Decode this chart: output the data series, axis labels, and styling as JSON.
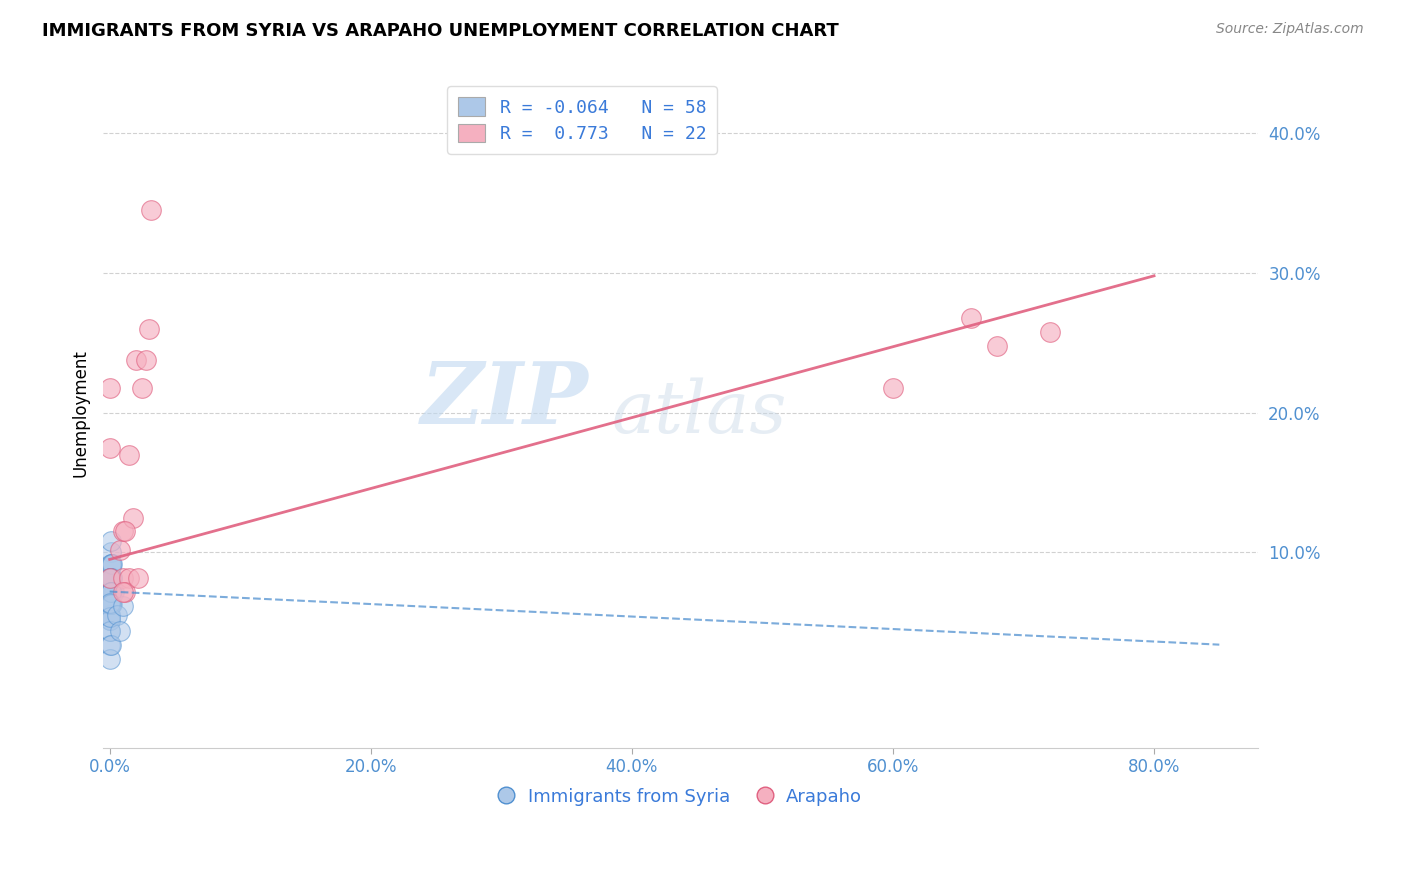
{
  "title": "IMMIGRANTS FROM SYRIA VS ARAPAHO UNEMPLOYMENT CORRELATION CHART",
  "source": "Source: ZipAtlas.com",
  "ylabel": "Unemployment",
  "xlabel_blue": "Immigrants from Syria",
  "xlabel_pink": "Arapaho",
  "x_tick_labels": [
    "0.0%",
    "20.0%",
    "40.0%",
    "60.0%",
    "80.0%"
  ],
  "x_tick_positions": [
    0.0,
    0.2,
    0.4,
    0.6,
    0.8
  ],
  "y_tick_labels": [
    "10.0%",
    "20.0%",
    "30.0%",
    "40.0%"
  ],
  "y_tick_positions": [
    0.1,
    0.2,
    0.3,
    0.4
  ],
  "xlim": [
    -0.005,
    0.88
  ],
  "ylim": [
    -0.04,
    0.44
  ],
  "legend_R_blue": "R = -0.064",
  "legend_N_blue": "N = 58",
  "legend_R_pink": "R =  0.773",
  "legend_N_pink": "N = 22",
  "blue_color": "#adc8e8",
  "pink_color": "#f5b0c0",
  "blue_line_color": "#5090d0",
  "pink_line_color": "#e06080",
  "watermark_zip": "ZIP",
  "watermark_atlas": "atlas",
  "blue_scatter_x": [
    0.0005,
    0.001,
    0.0008,
    0.0012,
    0.0006,
    0.001,
    0.0015,
    0.0008,
    0.001,
    0.0006,
    0.0012,
    0.001,
    0.0007,
    0.0008,
    0.001,
    0.0012,
    0.0006,
    0.001,
    0.0007,
    0.001,
    0.0006,
    0.0008,
    0.0007,
    0.001,
    0.0006,
    0.001,
    0.0005,
    0.0008,
    0.0007,
    0.001,
    0.002,
    0.0025,
    0.0015,
    0.002,
    0.003,
    0.0005,
    0.001,
    0.0006,
    0.0005,
    0.0006,
    0.0007,
    0.001,
    0.0012,
    0.0006,
    0.0005,
    0.0006,
    0.0007,
    0.001,
    0.0005,
    0.0005,
    0.0005,
    0.0005,
    0.001,
    0.0005,
    0.0005,
    0.006,
    0.008,
    0.01
  ],
  "blue_scatter_y": [
    0.075,
    0.082,
    0.09,
    0.1,
    0.065,
    0.072,
    0.082,
    0.108,
    0.073,
    0.055,
    0.082,
    0.092,
    0.063,
    0.072,
    0.082,
    0.092,
    0.055,
    0.063,
    0.072,
    0.082,
    0.063,
    0.072,
    0.063,
    0.072,
    0.082,
    0.063,
    0.052,
    0.072,
    0.063,
    0.072,
    0.082,
    0.072,
    0.063,
    0.092,
    0.072,
    0.082,
    0.072,
    0.063,
    0.052,
    0.063,
    0.072,
    0.063,
    0.072,
    0.082,
    0.063,
    0.052,
    0.072,
    0.063,
    0.044,
    0.034,
    0.024,
    0.044,
    0.034,
    0.054,
    0.064,
    0.055,
    0.044,
    0.062
  ],
  "pink_scatter_x": [
    0.0005,
    0.0005,
    0.0005,
    0.008,
    0.01,
    0.015,
    0.015,
    0.01,
    0.018,
    0.02,
    0.012,
    0.022,
    0.01,
    0.012,
    0.025,
    0.028,
    0.032,
    0.03,
    0.6,
    0.66,
    0.68,
    0.72
  ],
  "pink_scatter_y": [
    0.218,
    0.175,
    0.082,
    0.102,
    0.082,
    0.082,
    0.17,
    0.115,
    0.125,
    0.238,
    0.072,
    0.082,
    0.072,
    0.115,
    0.218,
    0.238,
    0.345,
    0.26,
    0.218,
    0.268,
    0.248,
    0.258
  ],
  "blue_trendline_x": [
    0.0,
    0.85
  ],
  "blue_trendline_y": [
    0.072,
    0.034
  ],
  "pink_trendline_x": [
    0.0,
    0.8
  ],
  "pink_trendline_y": [
    0.095,
    0.298
  ]
}
